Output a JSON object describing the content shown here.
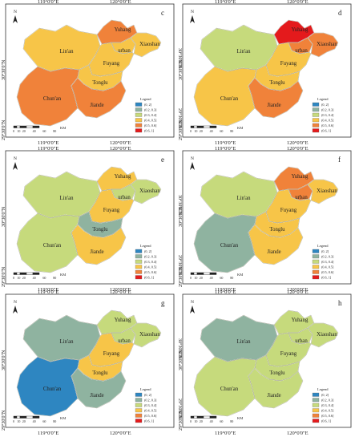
{
  "figure": {
    "lon_labels": [
      "119°0'0\"E",
      "120°0'0\"E"
    ],
    "lat_labels": [
      "30°30'0\"N",
      "29°30'0\"N"
    ],
    "north_letter": "N",
    "scale_ticks": [
      "0",
      "10",
      "20",
      "40",
      "60",
      "80"
    ],
    "scale_unit": "KM",
    "legend_title": "Legend",
    "legend_classes": [
      {
        "label": "(0, 2]",
        "color": "#2e86c1"
      },
      {
        "label": "(0.2, 0.3]",
        "color": "#8fb3a0"
      },
      {
        "label": "(0.3, 0.4]",
        "color": "#c6da7c"
      },
      {
        "label": "(0.4, 0.5]",
        "color": "#f7c548"
      },
      {
        "label": "(0.5, 0.6]",
        "color": "#f0823a"
      },
      {
        "label": "(0.6, 1]",
        "color": "#e41a1c"
      }
    ],
    "region_names": {
      "yuhang": "Yuhang",
      "urban": "urban",
      "xiaoshan": "Xiaoshan",
      "linan": "Lin'an",
      "fuyang": "Fuyang",
      "tonglu": "Tonglu",
      "chunan": "Chun'an",
      "jiande": "Jiande"
    }
  },
  "panels": [
    {
      "letter": "c",
      "fills": {
        "linan": 3,
        "chunan": 4,
        "jiande": 4,
        "tonglu": 3,
        "fuyang": 3,
        "yuhang": 4,
        "urban": 3,
        "xiaoshan": 3
      }
    },
    {
      "letter": "d",
      "fills": {
        "linan": 2,
        "chunan": 3,
        "jiande": 4,
        "tonglu": 3,
        "fuyang": 3,
        "yuhang": 5,
        "urban": 4,
        "xiaoshan": 4
      }
    },
    {
      "letter": "e",
      "fills": {
        "linan": 2,
        "chunan": 2,
        "jiande": 3,
        "tonglu": 1,
        "fuyang": 3,
        "yuhang": 3,
        "urban": 2,
        "xiaoshan": 2
      }
    },
    {
      "letter": "f",
      "fills": {
        "linan": 2,
        "chunan": 1,
        "jiande": 3,
        "tonglu": 3,
        "fuyang": 3,
        "yuhang": 4,
        "urban": 4,
        "xiaoshan": 3
      }
    },
    {
      "letter": "g",
      "fills": {
        "linan": 1,
        "chunan": 0,
        "jiande": 1,
        "tonglu": 3,
        "fuyang": 3,
        "yuhang": 2,
        "urban": 2,
        "xiaoshan": 2
      }
    },
    {
      "letter": "h",
      "fills": {
        "linan": 1,
        "chunan": 2,
        "jiande": 2,
        "tonglu": 2,
        "fuyang": 2,
        "yuhang": 2,
        "urban": 2,
        "xiaoshan": 2
      }
    }
  ]
}
